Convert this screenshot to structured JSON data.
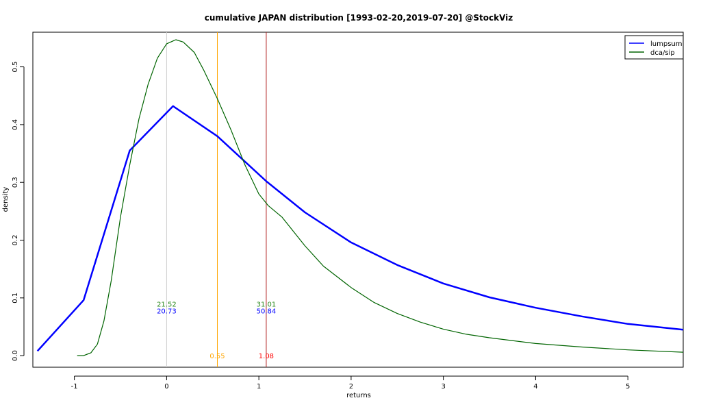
{
  "chart_data": {
    "type": "line",
    "title": "cumulative JAPAN distribution [1993-02-20,2019-07-20] @StockViz",
    "xlabel": "returns",
    "ylabel": "density",
    "xlim": [
      -1.45,
      5.6
    ],
    "ylim": [
      -0.02,
      0.56
    ],
    "xticks": [
      -1,
      0,
      1,
      2,
      3,
      4,
      5
    ],
    "yticks": [
      0.0,
      0.1,
      0.2,
      0.3,
      0.4,
      0.5
    ],
    "xtick_labels": [
      "-1",
      "0",
      "1",
      "2",
      "3",
      "4",
      "5"
    ],
    "ytick_labels": [
      "0.0",
      "0.1",
      "0.2",
      "0.3",
      "0.4",
      "0.5"
    ],
    "grid": false,
    "legend_position": "top-right",
    "series": [
      {
        "name": "lumpsum",
        "color": "#0000ff",
        "x": [
          -1.4,
          -0.9,
          -0.4,
          0.07,
          0.55,
          1.08,
          1.5,
          2.0,
          2.5,
          3.0,
          3.5,
          4.0,
          4.5,
          5.0,
          5.6
        ],
        "y": [
          0.008,
          0.096,
          0.355,
          0.432,
          0.38,
          0.302,
          0.248,
          0.196,
          0.157,
          0.125,
          0.101,
          0.083,
          0.068,
          0.055,
          0.045
        ]
      },
      {
        "name": "dca/sip",
        "color": "#006400",
        "x": [
          -0.97,
          -0.9,
          -0.82,
          -0.75,
          -0.68,
          -0.6,
          -0.5,
          -0.4,
          -0.3,
          -0.2,
          -0.1,
          0.0,
          0.1,
          0.18,
          0.3,
          0.4,
          0.55,
          0.7,
          0.85,
          1.0,
          1.1,
          1.25,
          1.5,
          1.7,
          2.0,
          2.25,
          2.5,
          2.75,
          3.0,
          3.25,
          3.5,
          4.0,
          4.5,
          5.0,
          5.6
        ],
        "y": [
          0.0,
          0.0,
          0.005,
          0.02,
          0.06,
          0.13,
          0.24,
          0.33,
          0.41,
          0.47,
          0.515,
          0.54,
          0.547,
          0.543,
          0.525,
          0.495,
          0.445,
          0.39,
          0.33,
          0.28,
          0.26,
          0.24,
          0.19,
          0.155,
          0.118,
          0.092,
          0.073,
          0.058,
          0.046,
          0.037,
          0.031,
          0.021,
          0.015,
          0.01,
          0.006
        ]
      }
    ],
    "vlines": [
      {
        "x": 0,
        "color": "#cccccc"
      },
      {
        "x": 0.55,
        "color": "#ffa500"
      },
      {
        "x": 1.08,
        "color": "#b22222"
      }
    ],
    "annotations": [
      {
        "text": "21.52",
        "x": 0,
        "y": 0.09,
        "color": "#2e8b22"
      },
      {
        "text": "20.73",
        "x": 0,
        "y": 0.078,
        "color": "#0000ff"
      },
      {
        "text": "31.01",
        "x": 0.07,
        "y": 0.09,
        "color": "#2e8b22",
        "anchor_x": 1.08
      },
      {
        "text": "50.84",
        "x": 0.07,
        "y": 0.078,
        "color": "#0000ff",
        "anchor_x": 1.08
      },
      {
        "text": "0.55",
        "x": 0.55,
        "y": 0.0,
        "color": "#ffa500"
      },
      {
        "text": "1.08",
        "x": 1.08,
        "y": 0.0,
        "color": "#ff0000"
      }
    ]
  }
}
